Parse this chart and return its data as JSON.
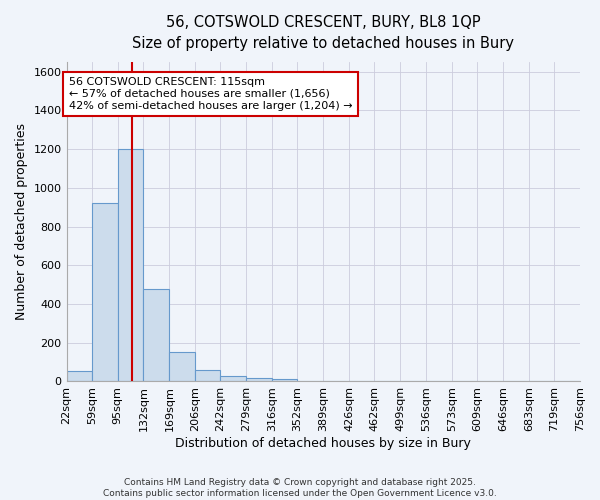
{
  "title_line1": "56, COTSWOLD CRESCENT, BURY, BL8 1QP",
  "title_line2": "Size of property relative to detached houses in Bury",
  "xlabel": "Distribution of detached houses by size in Bury",
  "ylabel": "Number of detached properties",
  "bin_edges": [
    22,
    59,
    95,
    132,
    169,
    206,
    242,
    279,
    316,
    352,
    389,
    426,
    462,
    499,
    536,
    573,
    609,
    646,
    683,
    719,
    756
  ],
  "bar_heights": [
    55,
    920,
    1200,
    475,
    150,
    60,
    30,
    20,
    15,
    0,
    0,
    0,
    0,
    0,
    0,
    0,
    0,
    0,
    0,
    0
  ],
  "bar_color": "#ccdcec",
  "bar_edge_color": "#6699cc",
  "property_size": 115,
  "vline_color": "#cc0000",
  "annotation_text": "56 COTSWOLD CRESCENT: 115sqm\n← 57% of detached houses are smaller (1,656)\n42% of semi-detached houses are larger (1,204) →",
  "annotation_box_color": "#ffffff",
  "annotation_border_color": "#cc0000",
  "ylim": [
    0,
    1650
  ],
  "yticks": [
    0,
    200,
    400,
    600,
    800,
    1000,
    1200,
    1400,
    1600
  ],
  "bg_color": "#f0f4fa",
  "plot_bg_color": "#f0f4fa",
  "grid_color": "#ccccdd",
  "footnote1": "Contains HM Land Registry data © Crown copyright and database right 2025.",
  "footnote2": "Contains public sector information licensed under the Open Government Licence v3.0.",
  "title_fontsize": 10.5,
  "subtitle_fontsize": 9.5,
  "axis_label_fontsize": 9,
  "tick_fontsize": 8,
  "annotation_fontsize": 8
}
